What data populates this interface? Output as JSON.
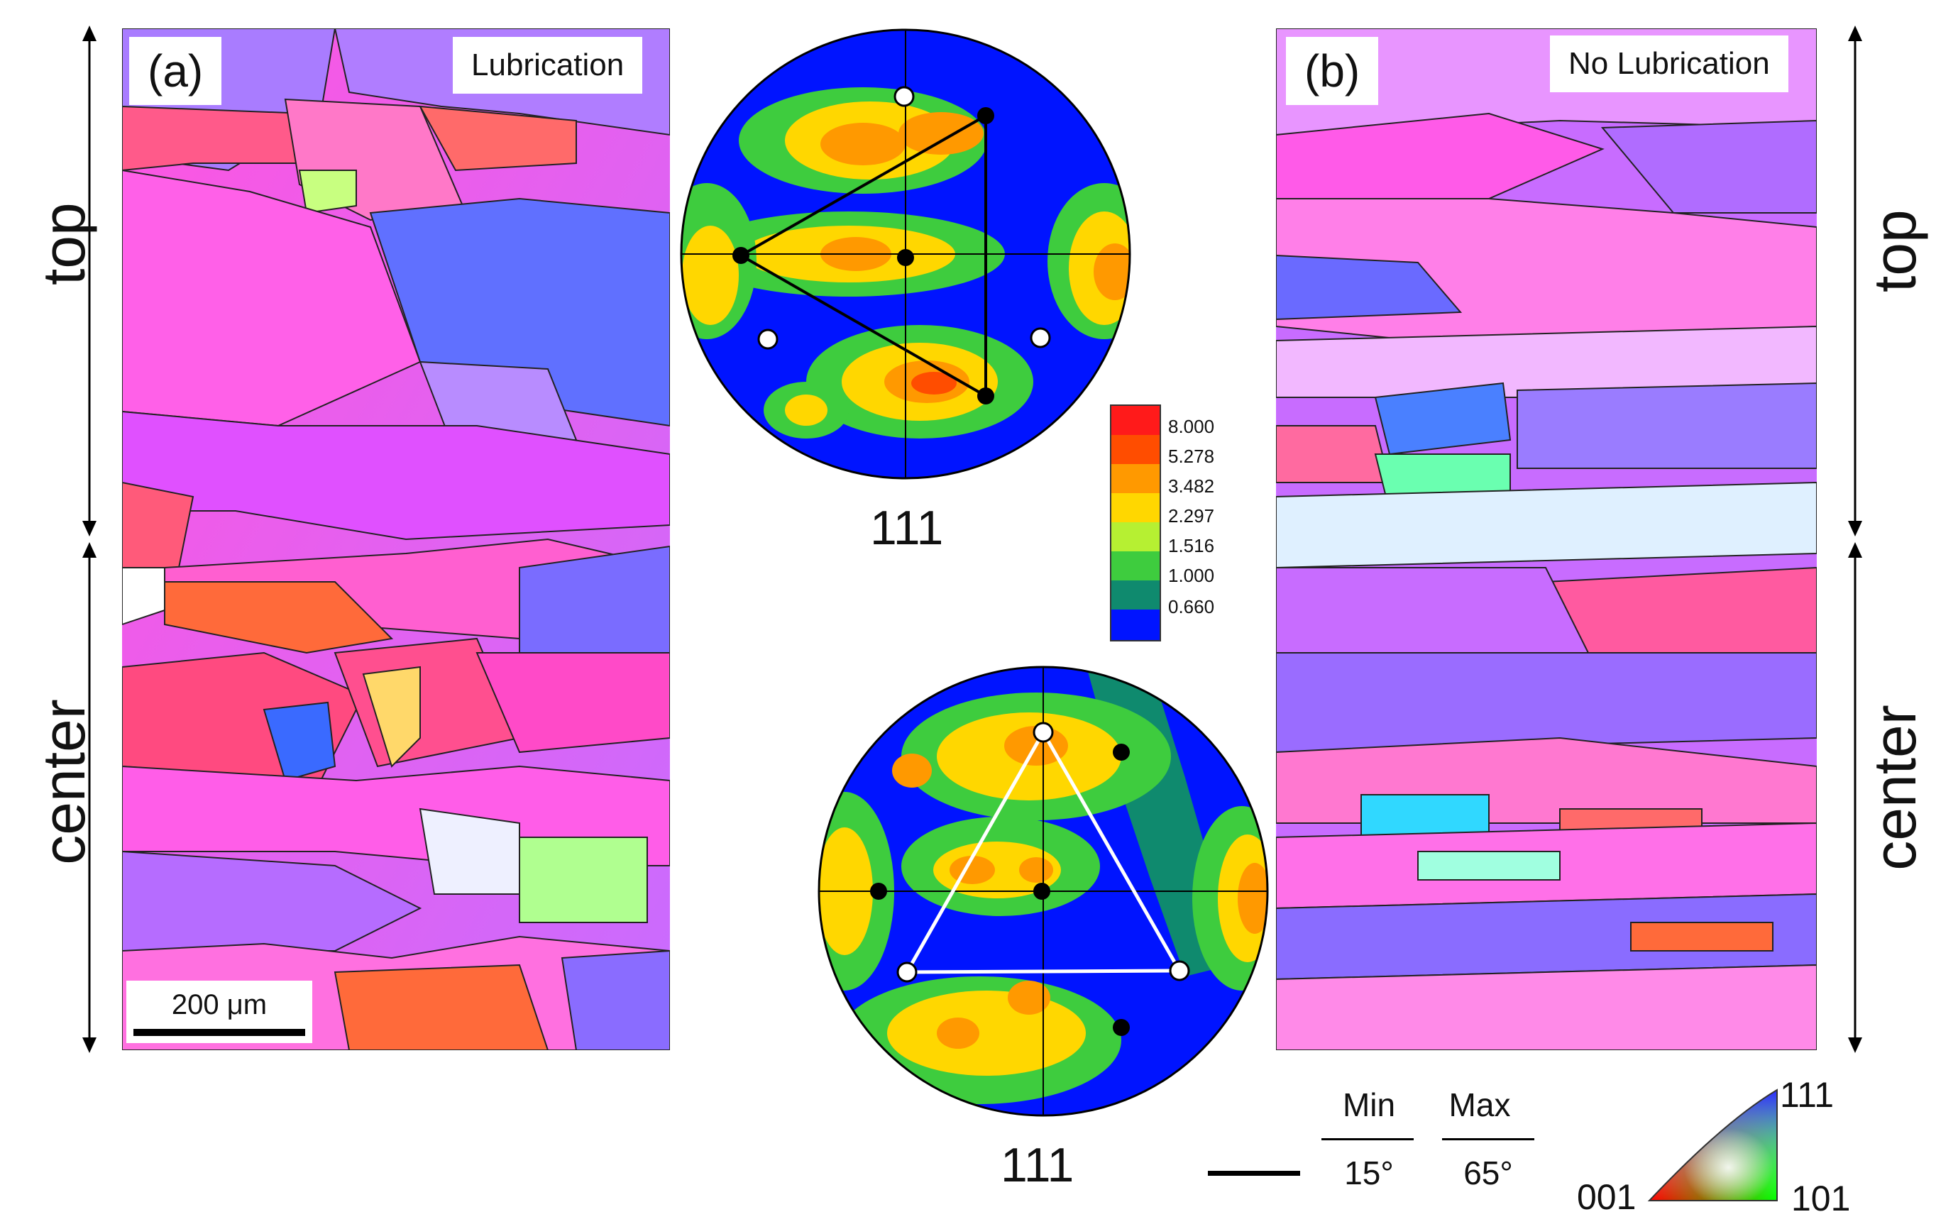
{
  "panel_a": {
    "tag": "(a)",
    "condition": "Lubrication",
    "scale_bar": "200 μm"
  },
  "panel_b": {
    "tag": "(b)",
    "condition": "No Lubrication"
  },
  "region_labels": {
    "top": "top",
    "center": "center"
  },
  "pole_figure_top": {
    "label": "111"
  },
  "pole_figure_bottom": {
    "label": "111"
  },
  "colorbar": {
    "levels": [
      "8.000",
      "5.278",
      "3.482",
      "2.297",
      "1.516",
      "1.000",
      "0.660"
    ],
    "colors": [
      "#ff1a1a",
      "#ff4d00",
      "#ff9900",
      "#ffd700",
      "#b6f032",
      "#3ecc3e",
      "#0f8a6e",
      "#0014ff"
    ]
  },
  "boundary_legend": {
    "min_label": "Min",
    "max_label": "Max",
    "min_value": "15°",
    "max_value": "65°"
  },
  "ipf_key": {
    "top": "111",
    "left": "001",
    "right": "101"
  },
  "colors": {
    "pole_figure_background": "#0014ff",
    "accent_black": "#000000"
  }
}
